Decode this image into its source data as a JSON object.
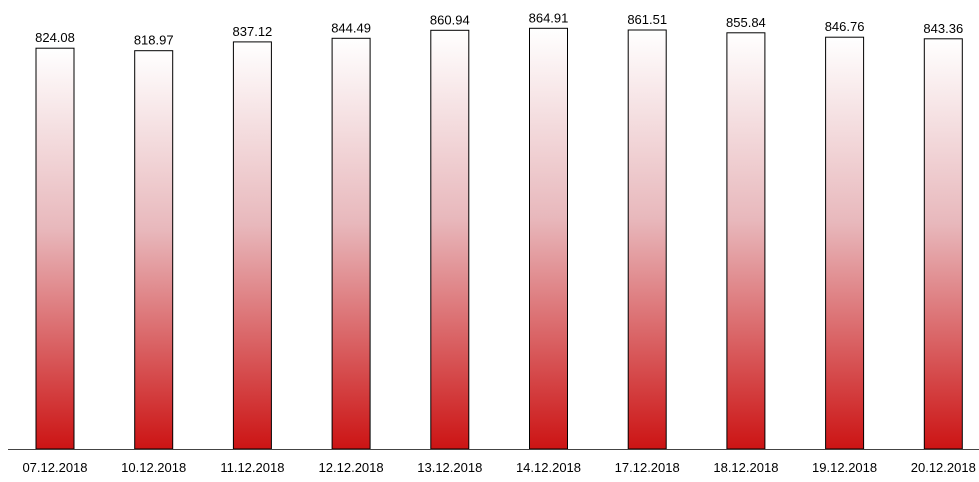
{
  "chart_data": {
    "type": "bar",
    "title": "",
    "xlabel": "",
    "ylabel": "",
    "categories": [
      "07.12.2018",
      "10.12.2018",
      "11.12.2018",
      "12.12.2018",
      "13.12.2018",
      "14.12.2018",
      "17.12.2018",
      "18.12.2018",
      "19.12.2018",
      "20.12.2018"
    ],
    "values": [
      824.08,
      818.97,
      837.12,
      844.49,
      860.94,
      864.91,
      861.51,
      855.84,
      846.76,
      843.36
    ],
    "value_labels": [
      "824.08",
      "818.97",
      "837.12",
      "844.49",
      "860.94",
      "864.91",
      "861.51",
      "855.84",
      "846.76",
      "843.36"
    ],
    "ylim": [
      0,
      880
    ],
    "grid": false,
    "legend": "none",
    "colors": {
      "bar_gradient_top": "#ffffff",
      "bar_gradient_mid": "#e8b8bc",
      "bar_gradient_bottom": "#cc1414",
      "bar_border": "#000000",
      "axis": "#444444"
    }
  }
}
